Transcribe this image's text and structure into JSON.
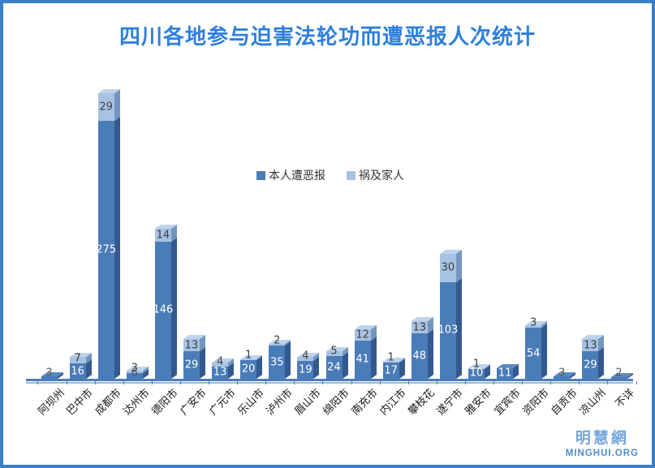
{
  "colors": {
    "title": "#2e80dd",
    "frame": "#3b7fc4",
    "axis": "#4a7ebb",
    "watermark_cn": "#74a7db",
    "watermark_en": "#4f8dcd"
  },
  "watermark": {
    "cn": "明慧網",
    "en": "MINGHUI.ORG"
  },
  "chart_data": {
    "type": "bar",
    "stacked": true,
    "style": "3d",
    "title": "四川各地参与迫害法轮功而遭恶报人次统计",
    "categories": [
      "阿坝州",
      "巴中市",
      "成都市",
      "达州市",
      "德阳市",
      "广安市",
      "广元市",
      "乐山市",
      "泸州市",
      "眉山市",
      "绵阳市",
      "南充市",
      "内江市",
      "攀枝花",
      "遂宁市",
      "雅安市",
      "宜宾市",
      "资阳市",
      "自贡市",
      "凉山州",
      "不详"
    ],
    "series": [
      {
        "name": "本人遭恶报",
        "values": [
          3,
          16,
          275,
          6,
          146,
          29,
          13,
          20,
          35,
          19,
          24,
          41,
          17,
          48,
          103,
          10,
          11,
          54,
          3,
          29,
          2
        ]
      },
      {
        "name": "祸及家人",
        "values": [
          0,
          7,
          29,
          3,
          14,
          13,
          4,
          1,
          2,
          4,
          5,
          12,
          1,
          13,
          30,
          1,
          0,
          3,
          0,
          13,
          0
        ]
      }
    ],
    "xlabel": "",
    "ylabel": "",
    "y_axis_visible": false,
    "grid": false,
    "ylim": [
      0,
      310
    ],
    "legend_position": "upper-center",
    "colors": {
      "dark_front": "#4a7cb8",
      "dark_side": "#33598e",
      "dark_top": "#5d88bd",
      "light_front": "#a7c2e2",
      "light_side": "#7396c0",
      "light_top": "#bed3ea"
    },
    "label_colors": {
      "on_dark": "#ffffff",
      "on_light": "#3f3f3f",
      "tiny": "#595959"
    }
  }
}
